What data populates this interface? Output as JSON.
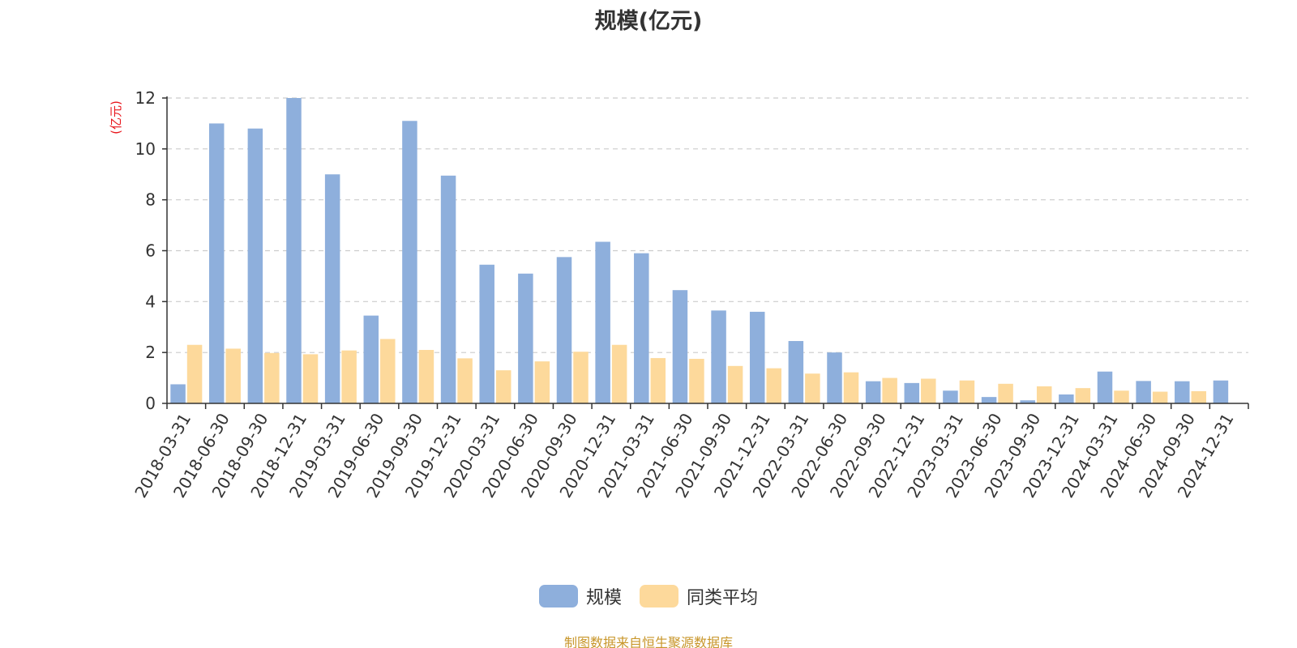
{
  "chart_data": {
    "type": "bar",
    "title": "规模(亿元)",
    "ylabel": "(亿元)",
    "xlabel": "",
    "ylim": [
      0,
      12
    ],
    "yticks": [
      0,
      2,
      4,
      6,
      8,
      10,
      12
    ],
    "grid": true,
    "legend_position": "bottom-center",
    "categories": [
      "2018-03-31",
      "2018-06-30",
      "2018-09-30",
      "2018-12-31",
      "2019-03-31",
      "2019-06-30",
      "2019-09-30",
      "2019-12-31",
      "2020-03-31",
      "2020-06-30",
      "2020-09-30",
      "2020-12-31",
      "2021-03-31",
      "2021-06-30",
      "2021-09-30",
      "2021-12-31",
      "2022-03-31",
      "2022-06-30",
      "2022-09-30",
      "2022-12-31",
      "2023-03-31",
      "2023-06-30",
      "2023-09-30",
      "2023-12-31",
      "2024-03-31",
      "2024-06-30",
      "2024-09-30",
      "2024-12-31"
    ],
    "series": [
      {
        "name": "规模",
        "color": "#8eafdc",
        "values": [
          0.75,
          11.0,
          10.8,
          12.0,
          9.0,
          3.45,
          11.1,
          8.95,
          5.45,
          5.1,
          5.75,
          6.35,
          5.9,
          4.45,
          3.65,
          3.6,
          2.45,
          2.0,
          0.87,
          0.8,
          0.5,
          0.25,
          0.12,
          0.35,
          1.25,
          0.88,
          0.87,
          0.9
        ]
      },
      {
        "name": "同类平均",
        "color": "#fdd99b",
        "values": [
          2.3,
          2.15,
          1.98,
          1.93,
          2.08,
          2.53,
          2.1,
          1.77,
          1.3,
          1.65,
          2.03,
          2.3,
          1.78,
          1.75,
          1.47,
          1.38,
          1.17,
          1.22,
          1.0,
          0.97,
          0.9,
          0.77,
          0.67,
          0.6,
          0.5,
          0.46,
          0.48,
          null
        ]
      }
    ]
  },
  "footer": "制图数据来自恒生聚源数据库"
}
